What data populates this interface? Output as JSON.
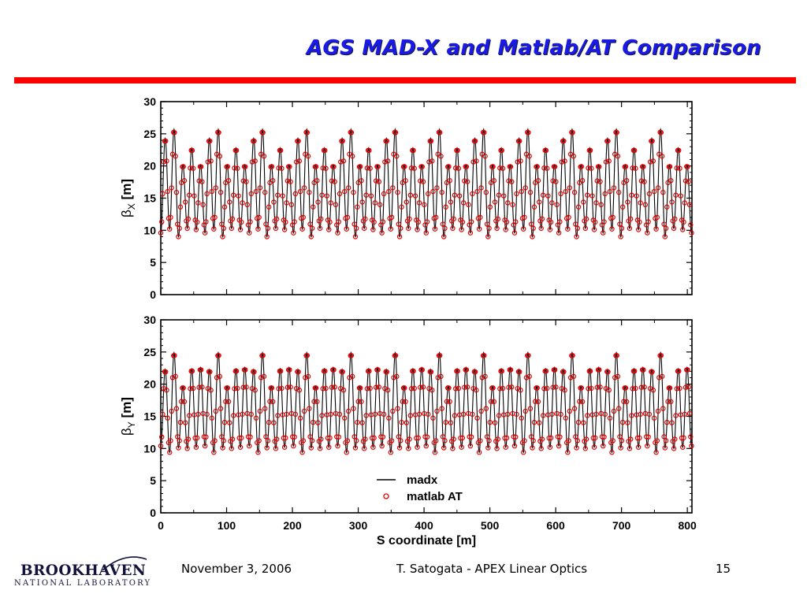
{
  "slide": {
    "title": "AGS MAD-X and Matlab/AT Comparison",
    "accent_color": "#ff0000",
    "title_color": "#1a1ae6"
  },
  "chart_data": {
    "type": "line",
    "description_of_series": "madx = black line; matlab AT = open red circles at optics elements",
    "shared_xlabel": "S coordinate [m]",
    "xlim": [
      0,
      807
    ],
    "x_ticks": [
      "0",
      "100",
      "200",
      "300",
      "400",
      "500",
      "600",
      "700",
      "800"
    ],
    "y_ticks": [
      "0",
      "5",
      "10",
      "15",
      "20",
      "25",
      "30"
    ],
    "legend": {
      "placement": "lower-center of bottom panel",
      "entries": [
        {
          "name": "madx",
          "marker": "line",
          "color": "#000000"
        },
        {
          "name": "matlab AT",
          "marker": "open-circle",
          "color": "#e00000"
        }
      ]
    },
    "periodicity": {
      "periods": 12,
      "cells_per_period": 5,
      "period_length_m": 67.2
    },
    "panels": [
      {
        "id": "beta-x",
        "ylabel_symbol": "β",
        "ylabel_subscript": "X",
        "ylabel_unit": "[m]",
        "ylim": [
          0,
          30
        ],
        "period_peaks": [
          24.3,
          25.7,
          20.2,
          22.8,
          20.2
        ],
        "period_valleys": [
          9.6,
          10.2,
          9.0,
          10.3,
          10.1
        ]
      },
      {
        "id": "beta-y",
        "ylabel_symbol": "β",
        "ylabel_subscript": "Y",
        "ylabel_unit": "[m]",
        "ylim": [
          0,
          30
        ],
        "period_peaks": [
          22.3,
          24.9,
          19.7,
          22.4,
          22.6
        ],
        "period_valleys": [
          10.4,
          9.4,
          10.1,
          10.0,
          10.2
        ]
      }
    ]
  },
  "footer": {
    "logo_main": "BROOKHAVEN",
    "logo_sub": "NATIONAL LABORATORY",
    "date": "November 3, 2006",
    "author": "T. Satogata - APEX Linear Optics",
    "page": "15"
  }
}
